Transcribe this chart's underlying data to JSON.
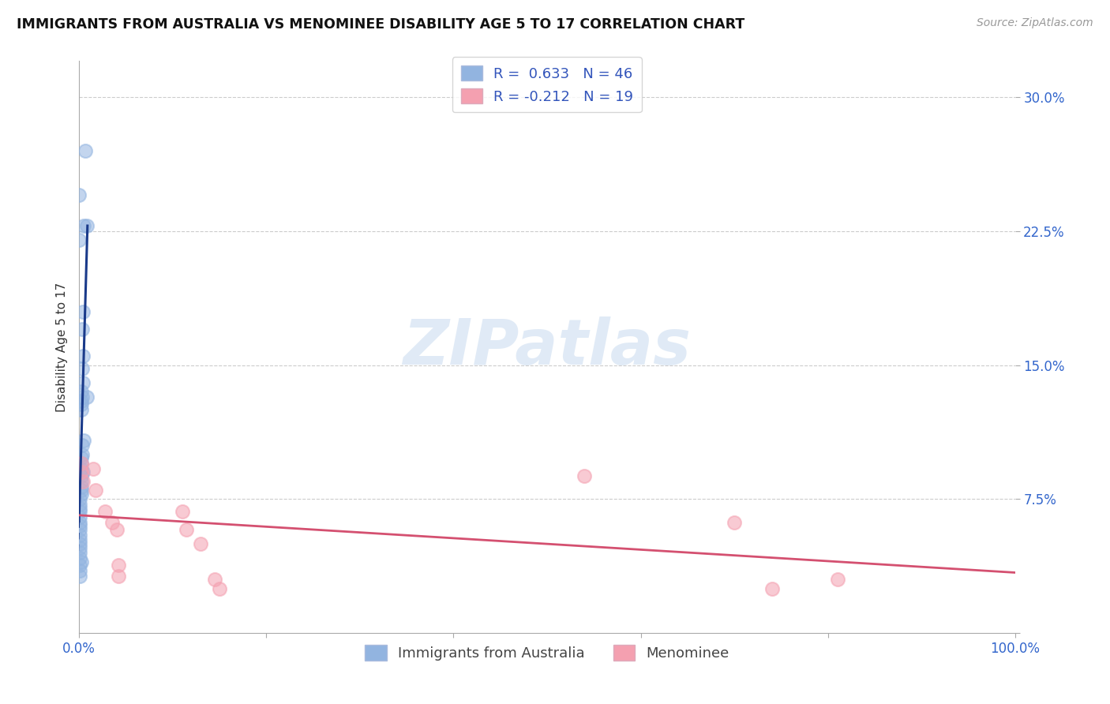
{
  "title": "IMMIGRANTS FROM AUSTRALIA VS MENOMINEE DISABILITY AGE 5 TO 17 CORRELATION CHART",
  "source": "Source: ZipAtlas.com",
  "ylabel": "Disability Age 5 to 17",
  "xlim": [
    0.0,
    1.0
  ],
  "ylim": [
    0.0,
    0.32
  ],
  "blue_R": 0.633,
  "blue_N": 46,
  "pink_R": -0.212,
  "pink_N": 19,
  "blue_color": "#92b4e0",
  "pink_color": "#f4a0b0",
  "blue_line_color": "#1a3a8a",
  "pink_line_color": "#d45070",
  "blue_scatter": [
    [
      0.0065,
      0.27
    ],
    [
      0.0,
      0.245
    ],
    [
      0.0,
      0.22
    ],
    [
      0.008,
      0.228
    ],
    [
      0.005,
      0.228
    ],
    [
      0.004,
      0.18
    ],
    [
      0.003,
      0.17
    ],
    [
      0.004,
      0.155
    ],
    [
      0.003,
      0.148
    ],
    [
      0.004,
      0.14
    ],
    [
      0.002,
      0.135
    ],
    [
      0.003,
      0.132
    ],
    [
      0.002,
      0.13
    ],
    [
      0.002,
      0.128
    ],
    [
      0.002,
      0.125
    ],
    [
      0.008,
      0.132
    ],
    [
      0.005,
      0.108
    ],
    [
      0.003,
      0.105
    ],
    [
      0.003,
      0.1
    ],
    [
      0.002,
      0.098
    ],
    [
      0.002,
      0.095
    ],
    [
      0.002,
      0.092
    ],
    [
      0.004,
      0.09
    ],
    [
      0.002,
      0.088
    ],
    [
      0.002,
      0.085
    ],
    [
      0.002,
      0.082
    ],
    [
      0.002,
      0.08
    ],
    [
      0.002,
      0.078
    ],
    [
      0.001,
      0.075
    ],
    [
      0.001,
      0.072
    ],
    [
      0.001,
      0.07
    ],
    [
      0.001,
      0.068
    ],
    [
      0.001,
      0.065
    ],
    [
      0.001,
      0.062
    ],
    [
      0.001,
      0.06
    ],
    [
      0.001,
      0.058
    ],
    [
      0.001,
      0.055
    ],
    [
      0.001,
      0.052
    ],
    [
      0.001,
      0.05
    ],
    [
      0.001,
      0.048
    ],
    [
      0.001,
      0.045
    ],
    [
      0.001,
      0.042
    ],
    [
      0.002,
      0.04
    ],
    [
      0.001,
      0.038
    ],
    [
      0.001,
      0.035
    ],
    [
      0.001,
      0.032
    ]
  ],
  "pink_scatter": [
    [
      0.002,
      0.095
    ],
    [
      0.002,
      0.09
    ],
    [
      0.004,
      0.085
    ],
    [
      0.015,
      0.092
    ],
    [
      0.018,
      0.08
    ],
    [
      0.028,
      0.068
    ],
    [
      0.035,
      0.062
    ],
    [
      0.04,
      0.058
    ],
    [
      0.042,
      0.038
    ],
    [
      0.042,
      0.032
    ],
    [
      0.11,
      0.068
    ],
    [
      0.115,
      0.058
    ],
    [
      0.13,
      0.05
    ],
    [
      0.145,
      0.03
    ],
    [
      0.15,
      0.025
    ],
    [
      0.54,
      0.088
    ],
    [
      0.7,
      0.062
    ],
    [
      0.74,
      0.025
    ],
    [
      0.81,
      0.03
    ]
  ],
  "watermark_text": "ZIPatlas",
  "yticks": [
    0.0,
    0.075,
    0.15,
    0.225,
    0.3
  ],
  "xticks": [
    0.0,
    0.2,
    0.4,
    0.6,
    0.8,
    1.0
  ],
  "ytick_labels": [
    "",
    "7.5%",
    "15.0%",
    "22.5%",
    "30.0%"
  ],
  "xtick_labels": [
    "0.0%",
    "",
    "",
    "",
    "",
    "100.0%"
  ]
}
